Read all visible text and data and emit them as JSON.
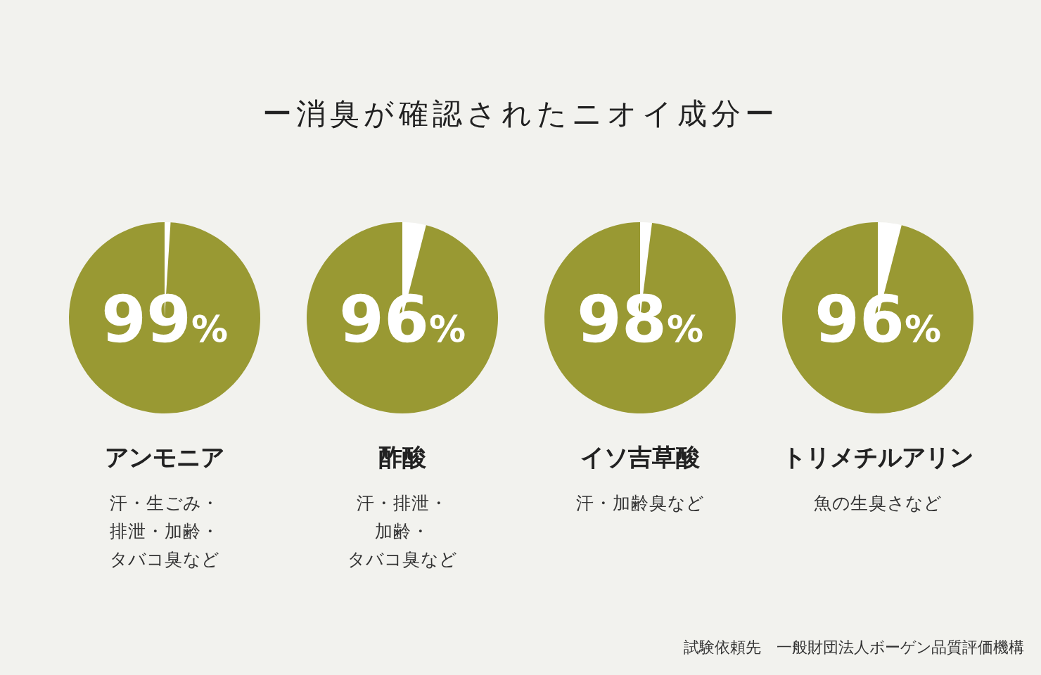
{
  "chart_data": [
    {
      "type": "pie",
      "title": "アンモニア",
      "subtitle": "汗・生ごみ・排泄・加齢・タバコ臭など",
      "categories": [
        null,
        null
      ],
      "values": [
        1,
        99
      ],
      "colors": [
        "#ffffff",
        "#999933"
      ],
      "value_labels": [
        null,
        "99%"
      ],
      "annotations": [
        "ー消臭が確認されたニオイ成分ー"
      ]
    },
    {
      "type": "pie",
      "title": "酢酸",
      "subtitle": "汗・排泄・加齢・タバコ臭など",
      "categories": [
        null,
        null
      ],
      "values": [
        4,
        96
      ],
      "colors": [
        "#ffffff",
        "#999933"
      ],
      "value_labels": [
        null,
        "96%"
      ]
    },
    {
      "type": "pie",
      "title": "イソ吉草酸",
      "subtitle": "汗・加齢臭など",
      "categories": [
        null,
        null
      ],
      "values": [
        2,
        98
      ],
      "colors": [
        "#ffffff",
        "#999933"
      ],
      "value_labels": [
        null,
        "98%"
      ]
    },
    {
      "type": "pie",
      "title": "トリメチルアリン",
      "subtitle": "魚の生臭さなど",
      "categories": [
        null,
        null
      ],
      "values": [
        4,
        96
      ],
      "colors": [
        "#ffffff",
        "#999933"
      ],
      "value_labels": [
        null,
        "96%"
      ],
      "annotations": [
        "試験依頼先　一般財団法人ボーゲン品質評価機構"
      ]
    }
  ]
}
